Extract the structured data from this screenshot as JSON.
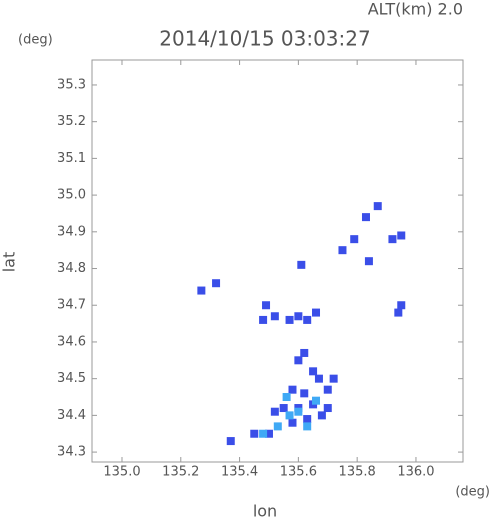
{
  "chart_data": {
    "type": "scatter",
    "title": "2014/10/15 03:03:27",
    "subtitle": "ALT(km) 2.0",
    "y_unit": "(deg)",
    "x_unit": "(deg)",
    "x_label": "lon",
    "y_label": "lat",
    "xlim": [
      134.898,
      136.16
    ],
    "ylim": [
      34.273,
      35.368
    ],
    "xticks": [
      {
        "value": 135,
        "label": "135.0"
      },
      135.2,
      135.4,
      135.6,
      135.8,
      {
        "value": 136,
        "label": "136.0"
      }
    ],
    "yticks": [
      34.3,
      34.4,
      34.5,
      34.6,
      34.7,
      34.8,
      34.9,
      {
        "value": 35,
        "label": "35.0"
      },
      35.1,
      35.2,
      35.3
    ],
    "series": [
      {
        "color": "#3a4ee8",
        "x": [
          135.27,
          135.32,
          135.48,
          135.49,
          135.52,
          135.57,
          135.6,
          135.63,
          135.66,
          135.62,
          135.6,
          135.65,
          135.67,
          135.7,
          135.72,
          135.62,
          135.58,
          135.55,
          135.6,
          135.65,
          135.7,
          135.52,
          135.58,
          135.63,
          135.68,
          135.5,
          135.45,
          135.37,
          135.84,
          135.92,
          135.95,
          135.95,
          135.94,
          135.87,
          135.83,
          135.79,
          135.75,
          135.61
        ],
        "values": [
          34.74,
          34.76,
          34.66,
          34.7,
          34.67,
          34.66,
          34.67,
          34.66,
          34.68,
          34.57,
          34.55,
          34.52,
          34.5,
          34.47,
          34.5,
          34.46,
          34.47,
          34.42,
          34.42,
          34.43,
          34.42,
          34.41,
          34.38,
          34.39,
          34.4,
          34.35,
          34.35,
          34.33,
          34.82,
          34.88,
          34.89,
          34.7,
          34.68,
          34.97,
          34.94,
          34.88,
          34.85,
          34.81
        ]
      },
      {
        "color": "#3fa9f5",
        "x": [
          135.57,
          135.6,
          135.53,
          135.48,
          135.63,
          135.66,
          135.56
        ],
        "values": [
          34.4,
          34.41,
          34.37,
          34.35,
          34.37,
          34.44,
          34.45
        ]
      }
    ]
  }
}
